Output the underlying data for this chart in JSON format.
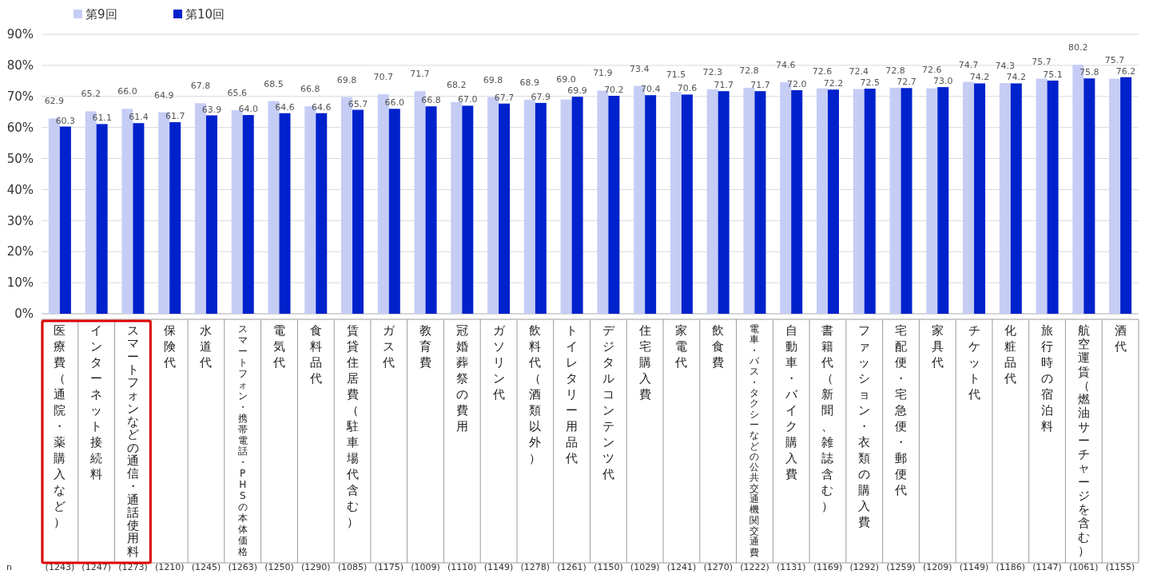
{
  "chart_data": {
    "type": "bar",
    "categories": [
      "医療費（通院・薬購入など）",
      "インターネット接続料",
      "スマートフォンなどの通信・通話使用料",
      "保険代",
      "水道代",
      "スマートフォン・携帯電話・PHSの本体価格",
      "電気代",
      "食料品代",
      "賃貸住居費（駐車場代含む）",
      "ガス代",
      "教育費",
      "冠婚葬祭の費用",
      "ガソリン代",
      "飲料代（酒類以外）",
      "トイレタリー用品代",
      "デジタルコンテンツ代",
      "住宅購入費",
      "家電代",
      "飲食費",
      "電車・バス・タクシーなどの公共交通機関交通費",
      "自動車・バイク購入費",
      "書籍代（新聞、雑誌含む）",
      "ファッション・衣類の購入費",
      "宅配便・宅急便・郵便代",
      "家具代",
      "チケット代",
      "化粧品代",
      "旅行時の宿泊料",
      "航空運賃（燃油サーチャージを含む）",
      "酒代"
    ],
    "series": [
      {
        "name": "第9回",
        "color": "#c5cdf5",
        "values": [
          62.9,
          65.2,
          66.0,
          64.9,
          67.8,
          65.6,
          68.5,
          66.8,
          69.8,
          70.7,
          71.7,
          68.2,
          69.8,
          68.9,
          69.0,
          71.9,
          73.4,
          71.5,
          72.3,
          72.8,
          74.6,
          72.6,
          72.4,
          72.8,
          72.6,
          74.7,
          74.3,
          75.7,
          80.2,
          75.7
        ],
        "value_labels": [
          "62.9",
          "65.2",
          "66.0",
          "64.9",
          "67.8",
          "65.6",
          "68.5",
          "66.8",
          "69.8",
          "70.7",
          "71.7",
          "68.2",
          "69.8",
          "68.9",
          "69.0",
          "71.9",
          "73.4",
          "71.5",
          "72.3",
          "72.8",
          "74.6",
          "72.6",
          "72.4",
          "72.8",
          "72.6",
          "74.7",
          "74.3",
          "75.7",
          "80.2",
          "75.7"
        ]
      },
      {
        "name": "第10回",
        "color": "#0022cc",
        "values": [
          60.3,
          61.1,
          61.4,
          61.7,
          63.9,
          64.0,
          64.6,
          64.6,
          65.7,
          66.0,
          66.8,
          67.0,
          67.7,
          67.9,
          69.9,
          70.2,
          70.4,
          70.6,
          71.7,
          71.7,
          72.0,
          72.2,
          72.5,
          72.7,
          73.0,
          74.2,
          74.2,
          75.1,
          75.8,
          76.2
        ],
        "value_labels": [
          "60.3",
          "61.1",
          "61.4",
          "61.7",
          "63.9",
          "64.0",
          "64.6",
          "64.6",
          "65.7",
          "66.0",
          "66.8",
          "67.0",
          "67.7",
          "67.9",
          "69.9",
          "70.2",
          "70.4",
          "70.6",
          "71.7",
          "71.7",
          "72.0",
          "72.2",
          "72.5",
          "72.7",
          "73.0",
          "74.2",
          "74.2",
          "75.1",
          "75.8",
          "76.2"
        ]
      }
    ],
    "ylim": [
      0,
      90
    ],
    "yticks": [
      {
        "value": 0,
        "label": "0%"
      },
      {
        "value": 10,
        "label": "10%"
      },
      {
        "value": 20,
        "label": "20%"
      },
      {
        "value": 30,
        "label": "30%"
      },
      {
        "value": 40,
        "label": "40%"
      },
      {
        "value": 50,
        "label": "50%"
      },
      {
        "value": 60,
        "label": "60%"
      },
      {
        "value": 70,
        "label": "70%"
      },
      {
        "value": 80,
        "label": "80%"
      },
      {
        "value": 90,
        "label": "90%"
      }
    ],
    "grid": "y",
    "legend": "top left",
    "annotations": [
      "n",
      "(1243)",
      "(1247)",
      "(1273)",
      "(1210)",
      "(1245)",
      "(1263)",
      "(1250)",
      "(1290)",
      "(1085)",
      "(1175)",
      "(1009)",
      "(1110)",
      "(1149)",
      "(1278)",
      "(1261)",
      "(1150)",
      "(1029)",
      "(1241)",
      "(1270)",
      "(1222)",
      "(1131)",
      "(1169)",
      "(1292)",
      "(1259)",
      "(1209)",
      "(1149)",
      "(1186)",
      "(1147)",
      "(1061)",
      "(1155)"
    ]
  }
}
